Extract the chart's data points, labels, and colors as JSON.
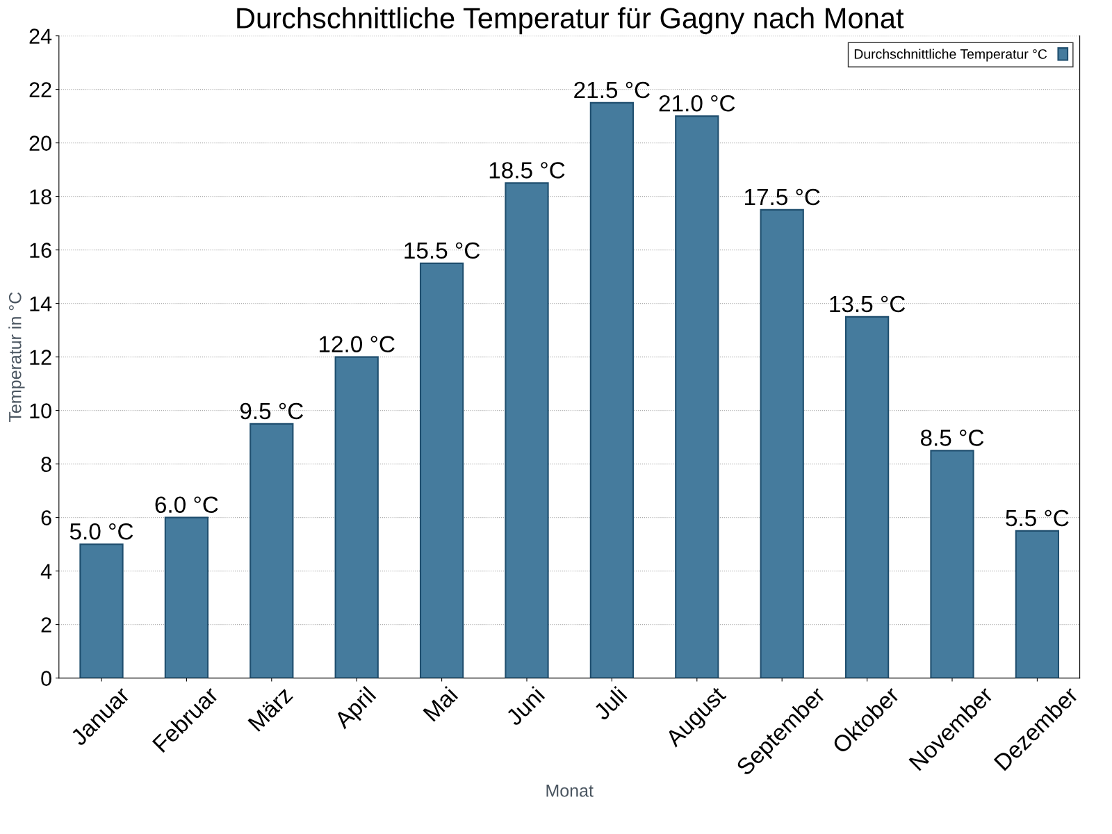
{
  "chart_data": {
    "type": "bar",
    "title": "Durchschnittliche Temperatur für Gagny nach Monat",
    "xlabel": "Monat",
    "ylabel": "Temperatur in °C",
    "categories": [
      "Januar",
      "Februar",
      "März",
      "April",
      "Mai",
      "Juni",
      "Juli",
      "August",
      "September",
      "Oktober",
      "November",
      "Dezember"
    ],
    "series": [
      {
        "name": "Durchschnittliche Temperatur °C",
        "color": "#457b9d",
        "values": [
          5.0,
          6.0,
          9.5,
          12.0,
          15.5,
          18.5,
          21.5,
          21.0,
          17.5,
          13.5,
          8.5,
          5.5
        ],
        "value_labels": [
          "5.0 °C",
          "6.0 °C",
          "9.5 °C",
          "12.0 °C",
          "15.5 °C",
          "18.5 °C",
          "21.5 °C",
          "21.0 °C",
          "17.5 °C",
          "13.5 °C",
          "8.5 °C",
          "5.5 °C"
        ]
      }
    ],
    "ylim": [
      0,
      24
    ],
    "yticks": [
      0,
      2,
      4,
      6,
      8,
      10,
      12,
      14,
      16,
      18,
      20,
      22,
      24
    ],
    "grid": "y",
    "legend": "top right"
  }
}
